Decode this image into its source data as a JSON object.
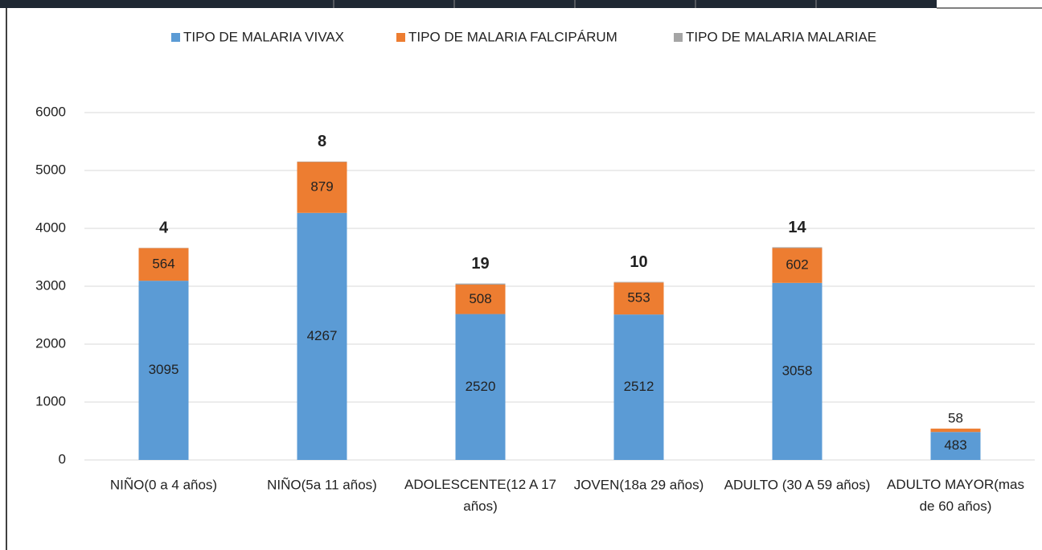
{
  "chart_data": {
    "type": "bar",
    "stacked": true,
    "categories": [
      "NIÑO(0 a 4 años)",
      "NIÑO(5a 11 años)",
      "ADOLESCENTE(12 A 17 años)",
      "JOVEN(18a 29 años)",
      "ADULTO (30 A 59 años)",
      "ADULTO MAYOR(mas de 60 años)"
    ],
    "series": [
      {
        "name": "TIPO DE MALARIA VIVAX",
        "color": "#5b9bd5",
        "values": [
          3095,
          4267,
          2520,
          2512,
          3058,
          483
        ]
      },
      {
        "name": "TIPO DE MALARIA FALCIPÁRUM",
        "color": "#ed7d31",
        "values": [
          564,
          879,
          508,
          553,
          602,
          58
        ]
      },
      {
        "name": "TIPO DE MALARIA MALARIAE",
        "color": "#a5a5a5",
        "values": [
          4,
          8,
          19,
          10,
          14,
          null
        ]
      }
    ],
    "ylim": [
      0,
      6000
    ],
    "yticks": [
      0,
      1000,
      2000,
      3000,
      4000,
      5000,
      6000
    ],
    "grid": true,
    "legend": "top"
  }
}
